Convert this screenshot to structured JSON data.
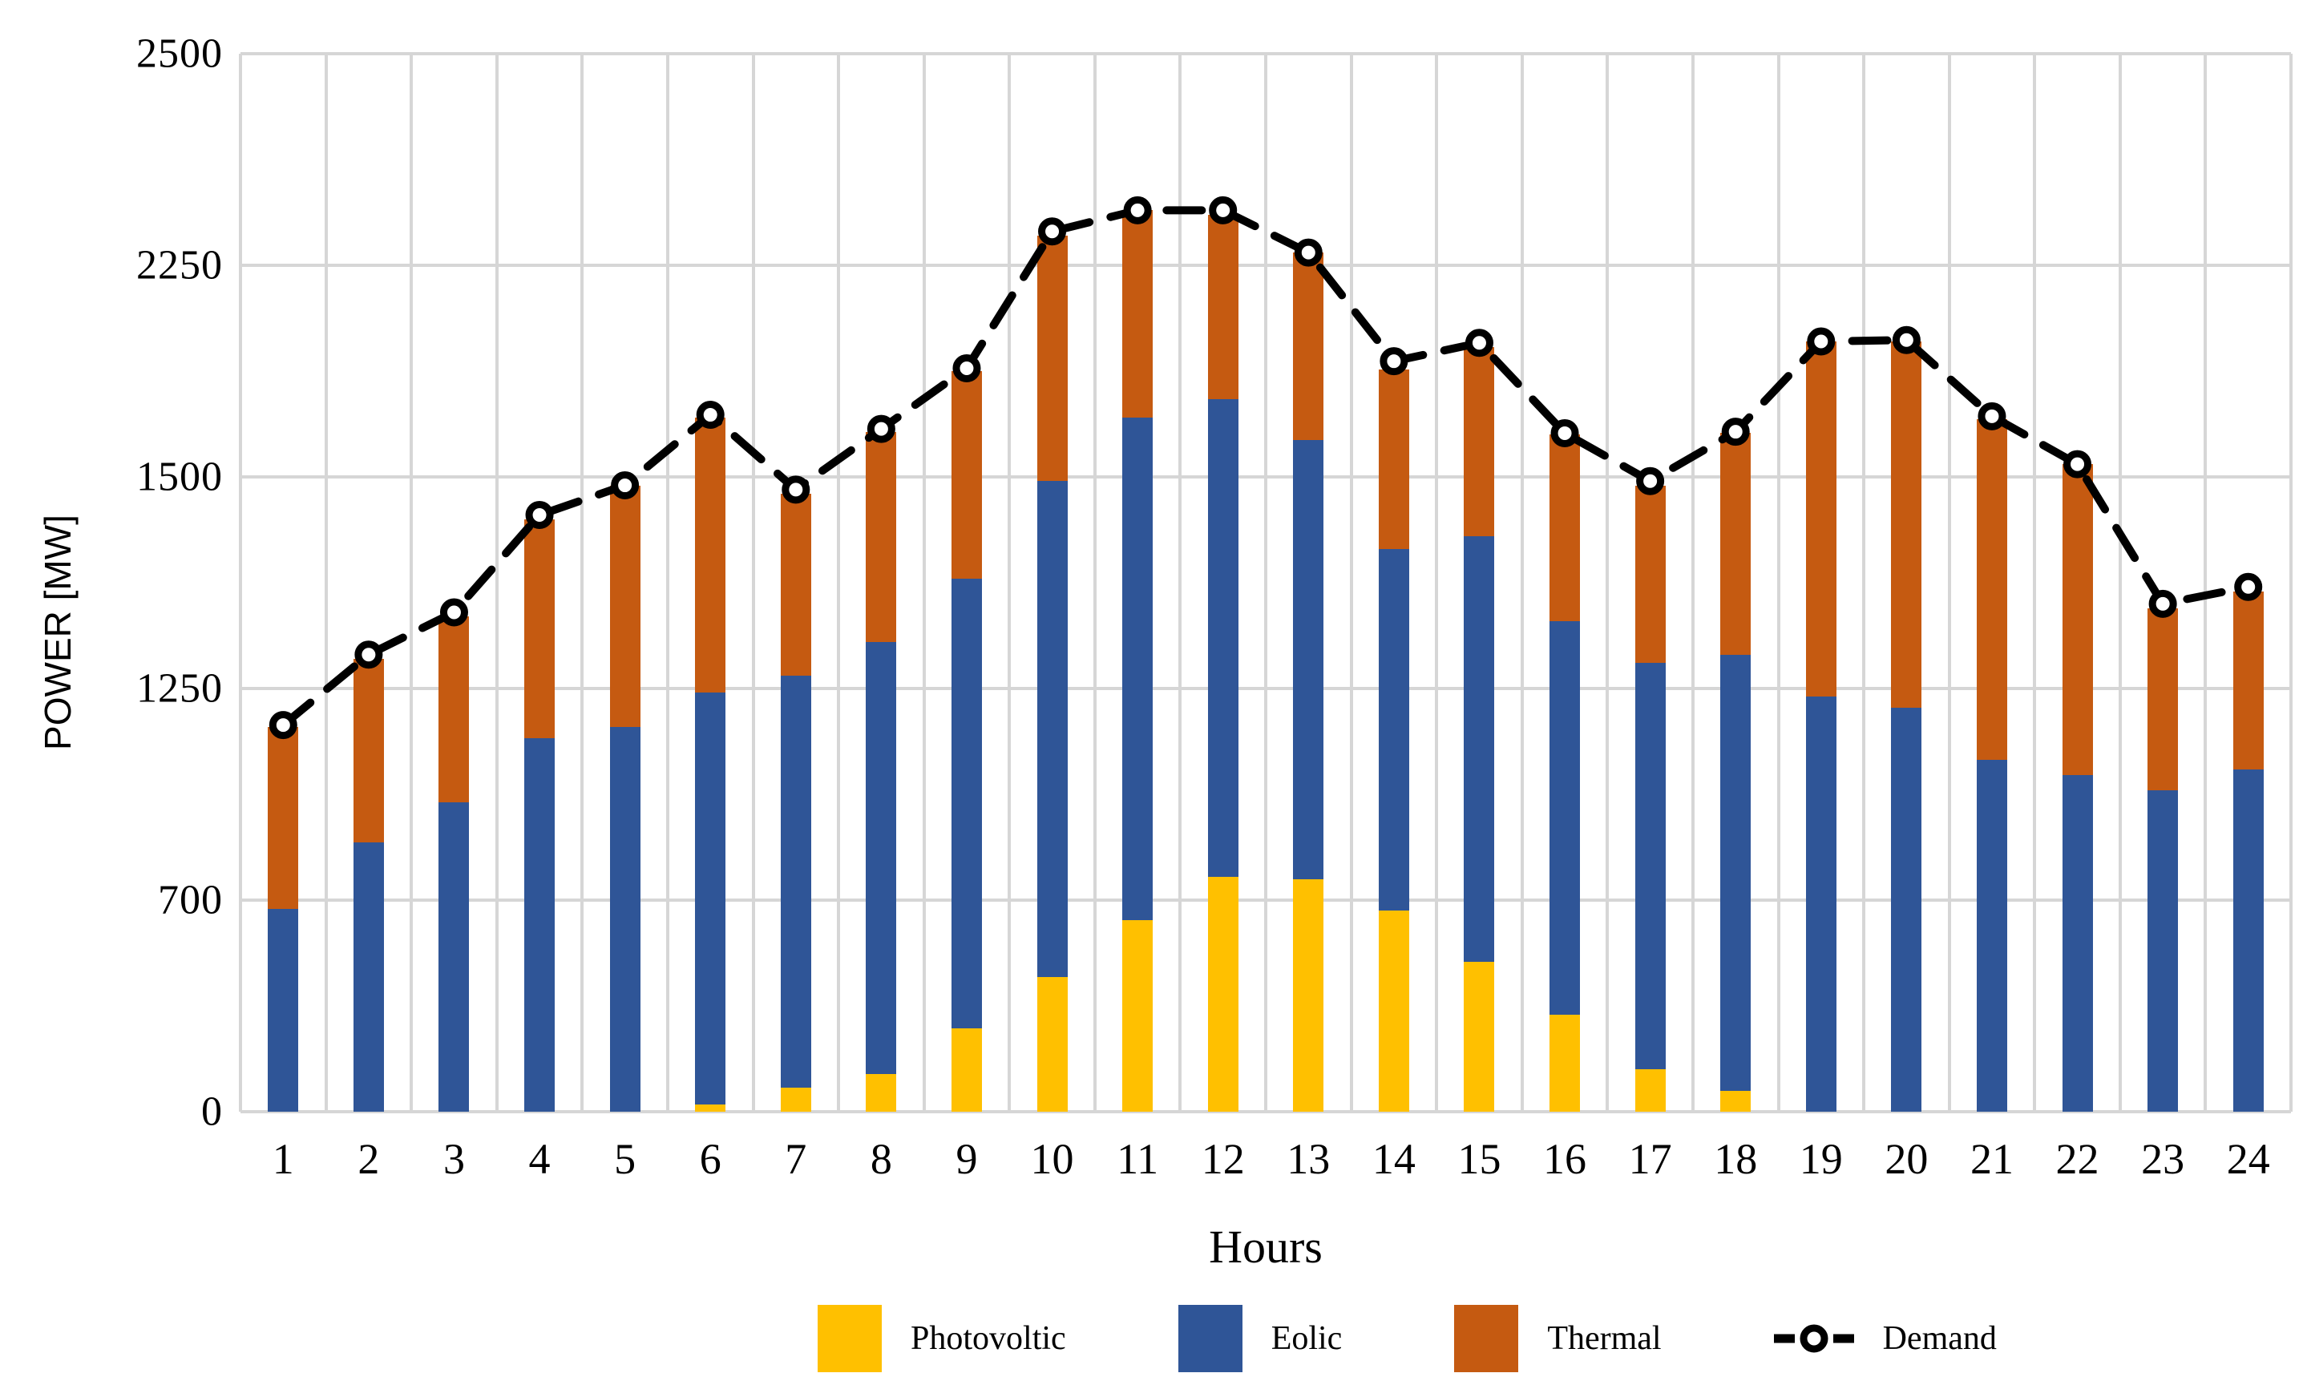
{
  "chart_data": {
    "type": "bar",
    "stacked": true,
    "title": "",
    "xlabel": "Hours",
    "ylabel": "POWER [MW]",
    "categories": [
      1,
      2,
      3,
      4,
      5,
      6,
      7,
      8,
      9,
      10,
      11,
      12,
      13,
      14,
      15,
      16,
      17,
      18,
      19,
      20,
      21,
      22,
      23,
      24
    ],
    "series": [
      {
        "name": "Photovoltic",
        "color": "#FFC000",
        "values": [
          0,
          0,
          0,
          0,
          0,
          25,
          80,
          125,
          275,
          445,
          635,
          760,
          755,
          665,
          495,
          320,
          140,
          70,
          0,
          0,
          0,
          0,
          0,
          0
        ]
      },
      {
        "name": "Eolic",
        "color": "#2F5597",
        "values": [
          670,
          850,
          955,
          1120,
          1150,
          1215,
          1185,
          1180,
          1105,
          1050,
          1075,
          1015,
          875,
          750,
          935,
          1010,
          1140,
          1220,
          1230,
          1200,
          1065,
          1025,
          985,
          1040
        ]
      },
      {
        "name": "Thermal",
        "color": "#C55A11",
        "values": [
          480,
          435,
          380,
          330,
          340,
          470,
          215,
          355,
          495,
          790,
          605,
          535,
          635,
          465,
          530,
          320,
          210,
          365,
          750,
          780,
          640,
          520,
          360,
          325
        ]
      }
    ],
    "line_series": {
      "name": "Demand",
      "color": "#000000",
      "style": "dashed",
      "marker": "open-circle",
      "values": [
        1155,
        1290,
        1340,
        1455,
        1490,
        1720,
        1485,
        1670,
        1885,
        2290,
        2315,
        2315,
        2265,
        1910,
        1975,
        1655,
        1495,
        1660,
        1980,
        1985,
        1715,
        1545,
        1350,
        1370
      ]
    },
    "y_axis": {
      "tick_labels_top_to_bottom": [
        "2500",
        "2250",
        "1500",
        "1250",
        "700",
        "0"
      ],
      "nonlinear_breakpoints_value_to_fraction_from_top": [
        [
          0,
          1.0
        ],
        [
          700,
          0.8
        ],
        [
          1250,
          0.6
        ],
        [
          1500,
          0.4
        ],
        [
          2250,
          0.2
        ],
        [
          2500,
          0.0
        ]
      ],
      "gridlines_evenly_spaced": true
    },
    "x_axis": {
      "tick_labels": [
        "1",
        "2",
        "3",
        "4",
        "5",
        "6",
        "7",
        "8",
        "9",
        "10",
        "11",
        "12",
        "13",
        "14",
        "15",
        "16",
        "17",
        "18",
        "19",
        "20",
        "21",
        "22",
        "23",
        "24"
      ]
    },
    "grid": true,
    "gridline_color": "#d6d6d6",
    "legend_position": "bottom"
  }
}
